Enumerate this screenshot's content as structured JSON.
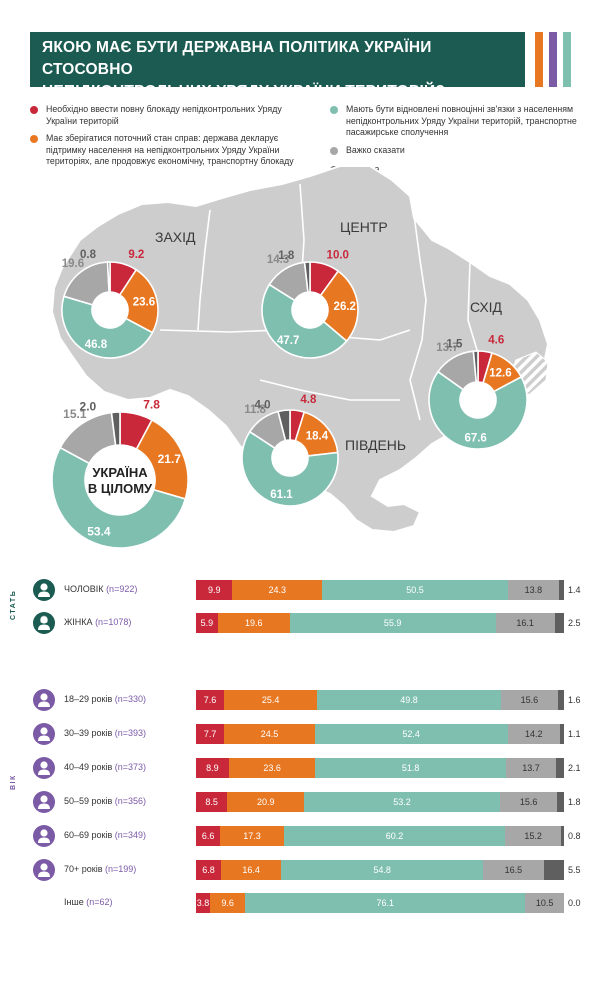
{
  "title": {
    "line1": "ЯКОЮ МАЄ БУТИ ДЕРЖАВНА ПОЛІТИКА УКРАЇНИ СТОСОВНО",
    "line2": "НЕПІДКОНТРОЛЬНИХ УРЯДУ УКРАЇНИ ТЕРИТОРІЙ?"
  },
  "colors": {
    "header": "#1b5b52",
    "blockade": "#c8283a",
    "status_quo": "#e87722",
    "restore": "#7fbfb0",
    "hard_to_say": "#a7a7a7",
    "refuse": "#5f5f5f",
    "map": "#cdcdcd",
    "map_border": "#ffffff",
    "stripe_orange": "#e87722",
    "stripe_purple": "#7b5aa6",
    "stripe_teal": "#7fbfb0",
    "icon_gender": "#1b5b52",
    "icon_age": "#7b5aa6"
  },
  "legend": {
    "blockade": "Необхідно ввести повну блокаду непідконтрольних Уряду України територій",
    "status_quo": "Має зберігатися поточний стан справ: держава декларує підтримку населення на непідконтрольних Уряду України територіях, але продовжує економічну, транспортну блокаду",
    "restore": "Мають бути відновлені повноцінні зв'язки з населенням непідконтрольних Уряду України територій, транспортне пасажирське сполучення",
    "hard_to_say": "Важко сказати",
    "refuse": "Відмова"
  },
  "side_labels": {
    "gender": "СТАТЬ",
    "age": "ВІК"
  },
  "chart_data": [
    {
      "type": "pie",
      "subtype": "donut",
      "categories": [
        "blockade",
        "status_quo",
        "restore",
        "hard_to_say",
        "refuse"
      ],
      "donuts": [
        {
          "id": "zakhid",
          "label": "ЗАХІД",
          "values": [
            9.2,
            23.6,
            46.8,
            19.6,
            0.8
          ]
        },
        {
          "id": "tsentr",
          "label": "ЦЕНТР",
          "values": [
            10.0,
            26.2,
            47.7,
            14.3,
            1.8
          ]
        },
        {
          "id": "skhid",
          "label": "СХІД",
          "values": [
            4.6,
            12.6,
            67.6,
            13.7,
            1.5
          ]
        },
        {
          "id": "pivden",
          "label": "ПІВДЕНЬ",
          "values": [
            4.8,
            18.4,
            61.1,
            11.8,
            4.0
          ]
        },
        {
          "id": "ukraine",
          "label": "",
          "center_line1": "УКРАЇНА",
          "center_line2": "В ЦІЛОМУ",
          "values": [
            7.8,
            21.7,
            53.4,
            15.1,
            2.0
          ]
        }
      ]
    },
    {
      "type": "bar",
      "subtype": "stacked-horizontal-100",
      "series_keys": [
        "blockade",
        "status_quo",
        "restore",
        "hard_to_say",
        "refuse"
      ],
      "rows": [
        {
          "group": "gender",
          "icon": "male-icon",
          "label": "ЧОЛОВІК",
          "n": "(n=922)",
          "values": [
            9.9,
            24.3,
            50.5,
            13.8,
            1.4
          ]
        },
        {
          "group": "gender",
          "icon": "female-icon",
          "label": "ЖІНКА",
          "n": "(n=1078)",
          "values": [
            5.9,
            19.6,
            55.9,
            16.1,
            2.5
          ]
        },
        {
          "group": "age",
          "icon": "person-young-icon",
          "label": "18–29 років",
          "n": "(n=330)",
          "values": [
            7.6,
            25.4,
            49.8,
            15.6,
            1.6
          ]
        },
        {
          "group": "age",
          "icon": "person-icon",
          "label": "30–39 років",
          "n": "(n=393)",
          "values": [
            7.7,
            24.5,
            52.4,
            14.2,
            1.1
          ]
        },
        {
          "group": "age",
          "icon": "person-icon",
          "label": "40–49 років",
          "n": "(n=373)",
          "values": [
            8.9,
            23.6,
            51.8,
            13.7,
            2.1
          ]
        },
        {
          "group": "age",
          "icon": "person-icon",
          "label": "50–59 років",
          "n": "(n=356)",
          "values": [
            8.5,
            20.9,
            53.2,
            15.6,
            1.8
          ]
        },
        {
          "group": "age",
          "icon": "person-elder-icon",
          "label": "60–69 років",
          "n": "(n=349)",
          "values": [
            6.6,
            17.3,
            60.2,
            15.2,
            0.8
          ]
        },
        {
          "group": "age",
          "icon": "person-elder-icon",
          "label": "70+ років",
          "n": "(n=199)",
          "values": [
            6.8,
            16.4,
            54.8,
            16.5,
            5.5
          ]
        },
        {
          "group": "age",
          "icon": "",
          "label": "Інше",
          "n": "(n=62)",
          "values": [
            3.8,
            9.6,
            76.1,
            10.5,
            0.0
          ]
        }
      ]
    }
  ]
}
